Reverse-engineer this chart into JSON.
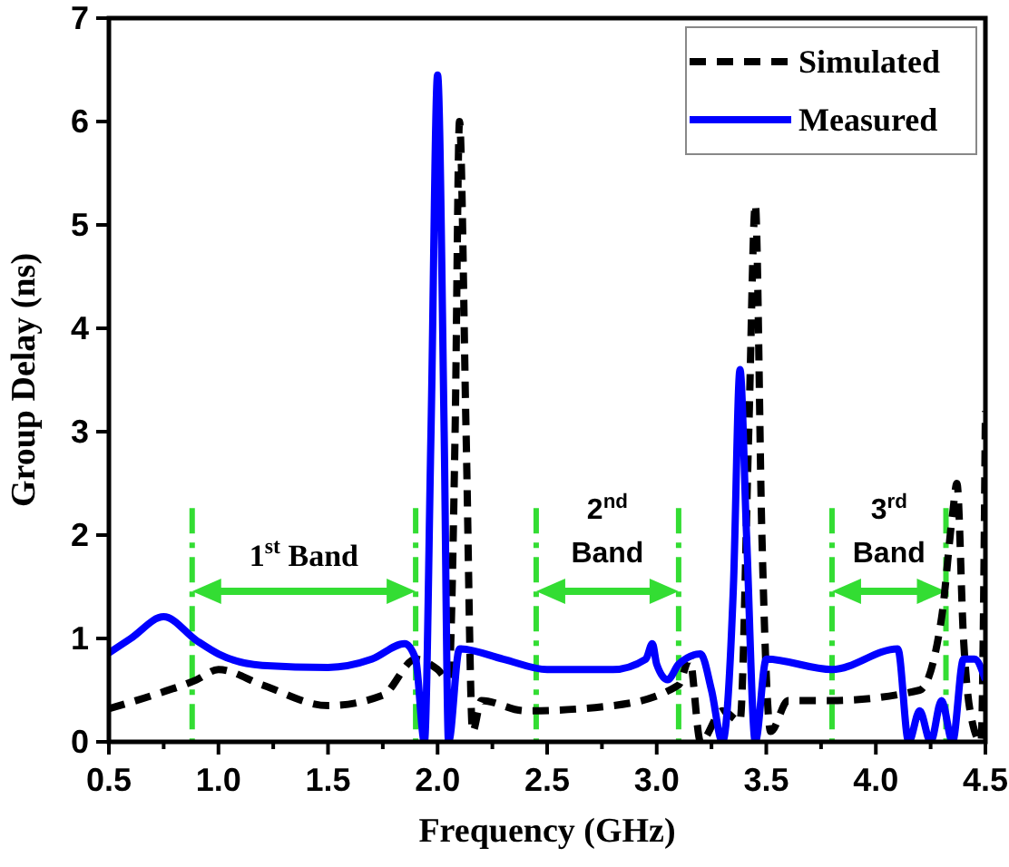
{
  "chart_data": {
    "type": "line",
    "xlabel": "Frequency (GHz)",
    "ylabel": "Group Delay (ns)",
    "xlim": [
      0.5,
      4.5
    ],
    "ylim": [
      0,
      7
    ],
    "xticks": [
      0.5,
      {
        "value": 0.75,
        "label": null
      },
      {
        "value": 1,
        "label": "1.0"
      },
      {
        "value": 1.25,
        "label": null
      },
      1.5,
      {
        "value": 1.75,
        "label": null
      },
      {
        "value": 2,
        "label": "2.0"
      },
      {
        "value": 2.25,
        "label": null
      },
      2.5,
      {
        "value": 2.75,
        "label": null
      },
      {
        "value": 3,
        "label": "3.0"
      },
      {
        "value": 3.25,
        "label": null
      },
      3.5,
      {
        "value": 3.75,
        "label": null
      },
      {
        "value": 4,
        "label": "4.0"
      },
      {
        "value": 4.25,
        "label": null
      },
      4.5
    ],
    "yticks": [
      0,
      1,
      2,
      3,
      4,
      5,
      6,
      7
    ],
    "legend": "top right",
    "series": [
      {
        "name": "Simulated",
        "color": "#000000",
        "line_style": "dashed",
        "x": [
          0.5,
          0.7,
          0.9,
          1.0,
          1.2,
          1.5,
          1.75,
          1.9,
          2.0,
          2.05,
          2.08,
          2.1,
          2.13,
          2.16,
          2.2,
          2.4,
          2.8,
          3.1,
          3.15,
          3.2,
          3.3,
          3.38,
          3.42,
          3.45,
          3.48,
          3.52,
          3.6,
          3.8,
          4.2,
          4.3,
          4.35,
          4.37,
          4.4,
          4.43,
          4.48,
          4.5
        ],
        "values": [
          0.32,
          0.45,
          0.6,
          0.7,
          0.55,
          0.35,
          0.45,
          0.8,
          0.7,
          0.6,
          3.0,
          6.0,
          3.0,
          0.1,
          0.4,
          0.3,
          0.35,
          0.55,
          0.8,
          0.0,
          0.3,
          0.2,
          3.0,
          5.2,
          2.0,
          0.1,
          0.4,
          0.4,
          0.5,
          1.2,
          2.2,
          2.5,
          1.0,
          0.3,
          0.0,
          3.2
        ]
      },
      {
        "name": "Measured",
        "color": "#0000ff",
        "line_style": "solid",
        "x": [
          0.5,
          0.6,
          0.75,
          0.9,
          1.0,
          1.2,
          1.5,
          1.7,
          1.85,
          1.9,
          1.94,
          1.97,
          2.0,
          2.03,
          2.05,
          2.1,
          2.3,
          2.5,
          2.8,
          2.95,
          2.98,
          3.0,
          3.05,
          3.1,
          3.2,
          3.25,
          3.3,
          3.35,
          3.38,
          3.41,
          3.45,
          3.5,
          3.8,
          4.1,
          4.15,
          4.2,
          4.25,
          4.3,
          4.35,
          4.4,
          4.45,
          4.5
        ],
        "values": [
          0.86,
          1.0,
          1.21,
          0.98,
          0.85,
          0.74,
          0.72,
          0.8,
          0.95,
          0.8,
          0.0,
          3.0,
          6.45,
          3.0,
          0.0,
          0.9,
          0.8,
          0.7,
          0.7,
          0.8,
          0.95,
          0.75,
          0.6,
          0.75,
          0.85,
          0.5,
          0.0,
          1.5,
          3.6,
          2.0,
          0.0,
          0.8,
          0.7,
          0.9,
          0.0,
          0.3,
          0.0,
          0.4,
          0.0,
          0.8,
          0.8,
          0.6
        ]
      }
    ],
    "ref_lines": [
      {
        "axis": "x",
        "value": 0.88,
        "color": "#33dd33",
        "line_style": "dashed"
      },
      {
        "axis": "x",
        "value": 1.9,
        "color": "#33dd33",
        "line_style": "dashed"
      },
      {
        "axis": "x",
        "value": 2.45,
        "color": "#33dd33",
        "line_style": "dashed"
      },
      {
        "axis": "x",
        "value": 3.1,
        "color": "#33dd33",
        "line_style": "dashed"
      },
      {
        "axis": "x",
        "value": 3.8,
        "color": "#33dd33",
        "line_style": "dashed"
      },
      {
        "axis": "x",
        "value": 4.32,
        "color": "#33dd33",
        "line_style": "dashed"
      }
    ],
    "annotations": [
      "1$^{st}$ Band",
      "2$^{nd}$ Band",
      "3$^{rd}$ Band"
    ]
  }
}
